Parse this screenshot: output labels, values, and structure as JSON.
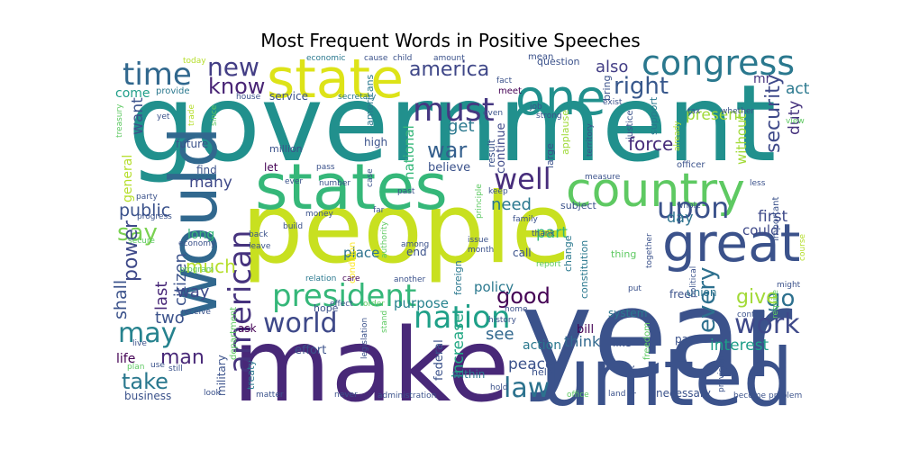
{
  "chart_data": {
    "type": "wordcloud",
    "title": "Most Frequent Words in Positive Speeches",
    "background": "#ffffff",
    "colormap": "viridis",
    "words": [
      {
        "text": "government",
        "weight": 100,
        "color": "#21908d"
      },
      {
        "text": "people",
        "weight": 92,
        "color": "#c8e020"
      },
      {
        "text": "year",
        "weight": 90,
        "color": "#3b528b"
      },
      {
        "text": "make",
        "weight": 86,
        "color": "#482878"
      },
      {
        "text": "would",
        "weight": 60,
        "color": "#31688e"
      },
      {
        "text": "united",
        "weight": 60,
        "color": "#3b528b"
      },
      {
        "text": "states",
        "weight": 55,
        "color": "#35b779"
      },
      {
        "text": "state",
        "weight": 48,
        "color": "#dde318"
      },
      {
        "text": "one",
        "weight": 45,
        "color": "#21908d"
      },
      {
        "text": "country",
        "weight": 42,
        "color": "#5ec962"
      },
      {
        "text": "great",
        "weight": 40,
        "color": "#3b528b"
      },
      {
        "text": "congress",
        "weight": 33,
        "color": "#2a788e"
      },
      {
        "text": "american",
        "weight": 30,
        "color": "#46337e"
      },
      {
        "text": "president",
        "weight": 30,
        "color": "#35b779"
      },
      {
        "text": "nation",
        "weight": 30,
        "color": "#1fa088"
      },
      {
        "text": "time",
        "weight": 28,
        "color": "#31688e"
      },
      {
        "text": "upon",
        "weight": 28,
        "color": "#3b528b"
      },
      {
        "text": "well",
        "weight": 28,
        "color": "#472d7b"
      },
      {
        "text": "must",
        "weight": 27,
        "color": "#453781"
      },
      {
        "text": "world",
        "weight": 27,
        "color": "#3e4989"
      },
      {
        "text": "law",
        "weight": 27,
        "color": "#2c728e"
      },
      {
        "text": "may",
        "weight": 26,
        "color": "#26828e"
      },
      {
        "text": "work",
        "weight": 26,
        "color": "#3e4989"
      },
      {
        "text": "new",
        "weight": 25,
        "color": "#433e85"
      },
      {
        "text": "right",
        "weight": 22,
        "color": "#38588c"
      },
      {
        "text": "america",
        "weight": 20,
        "color": "#3f4788"
      },
      {
        "text": "say",
        "weight": 22,
        "color": "#7ad151"
      },
      {
        "text": "good",
        "weight": 22,
        "color": "#440154"
      },
      {
        "text": "know",
        "weight": 20,
        "color": "#482475"
      },
      {
        "text": "power",
        "weight": 20,
        "color": "#3e4989"
      },
      {
        "text": "take",
        "weight": 20,
        "color": "#2a788e"
      },
      {
        "text": "man",
        "weight": 20,
        "color": "#482878"
      },
      {
        "text": "every",
        "weight": 20,
        "color": "#2d708e"
      },
      {
        "text": "war",
        "weight": 18,
        "color": "#345f8d"
      },
      {
        "text": "go",
        "weight": 20,
        "color": "#2d708e"
      },
      {
        "text": "give",
        "weight": 18,
        "color": "#a2da37"
      },
      {
        "text": "much",
        "weight": 16,
        "color": "#b5de2b"
      },
      {
        "text": "security",
        "weight": 16,
        "color": "#3e4989"
      },
      {
        "text": "force",
        "weight": 15,
        "color": "#472c7a"
      },
      {
        "text": "present",
        "weight": 14,
        "color": "#a0da39"
      },
      {
        "text": "peace",
        "weight": 14,
        "color": "#3b528b"
      },
      {
        "text": "see",
        "weight": 14,
        "color": "#31688e"
      },
      {
        "text": "need",
        "weight": 14,
        "color": "#2a788e"
      },
      {
        "text": "public",
        "weight": 14,
        "color": "#3b528b"
      },
      {
        "text": "shall",
        "weight": 13,
        "color": "#3b528b"
      },
      {
        "text": "last",
        "weight": 13,
        "color": "#482878"
      },
      {
        "text": "citizen",
        "weight": 13,
        "color": "#3b528b"
      },
      {
        "text": "way",
        "weight": 13,
        "color": "#3e4989"
      },
      {
        "text": "two",
        "weight": 13,
        "color": "#3b528b"
      },
      {
        "text": "also",
        "weight": 13,
        "color": "#433e85"
      },
      {
        "text": "get",
        "weight": 13,
        "color": "#2a788e"
      },
      {
        "text": "increase",
        "weight": 13,
        "color": "#22a884"
      },
      {
        "text": "interest",
        "weight": 13,
        "color": "#1f9e89"
      },
      {
        "text": "act",
        "weight": 12,
        "color": "#2a788e"
      },
      {
        "text": "duty",
        "weight": 12,
        "color": "#46337e"
      },
      {
        "text": "first",
        "weight": 12,
        "color": "#3e4989"
      },
      {
        "text": "day",
        "weight": 12,
        "color": "#2c728e"
      },
      {
        "text": "part",
        "weight": 12,
        "color": "#35b779"
      },
      {
        "text": "want",
        "weight": 12,
        "color": "#3b528b"
      },
      {
        "text": "many",
        "weight": 12,
        "color": "#3e4989"
      },
      {
        "text": "come",
        "weight": 11,
        "color": "#1f9e89"
      },
      {
        "text": "think",
        "weight": 11,
        "color": "#31688e"
      },
      {
        "text": "policy",
        "weight": 11,
        "color": "#2a788e"
      },
      {
        "text": "purpose",
        "weight": 11,
        "color": "#26828e"
      },
      {
        "text": "national",
        "weight": 11,
        "color": "#35b779"
      },
      {
        "text": "without",
        "weight": 11,
        "color": "#a2da37"
      },
      {
        "text": "action",
        "weight": 10,
        "color": "#2a788e"
      },
      {
        "text": "could",
        "weight": 10,
        "color": "#3e4989"
      },
      {
        "text": "life",
        "weight": 10,
        "color": "#440154"
      },
      {
        "text": "mr",
        "weight": 10,
        "color": "#46337e"
      },
      {
        "text": "general",
        "weight": 10,
        "color": "#b5de2b"
      },
      {
        "text": "long",
        "weight": 10,
        "color": "#35b779"
      },
      {
        "text": "place",
        "weight": 10,
        "color": "#2c728e"
      },
      {
        "text": "believe",
        "weight": 10,
        "color": "#3b528b"
      },
      {
        "text": "continue",
        "weight": 10,
        "color": "#3e4989"
      },
      {
        "text": "business",
        "weight": 9,
        "color": "#3b528b"
      },
      {
        "text": "necessary",
        "weight": 9,
        "color": "#3b528b"
      },
      {
        "text": "free",
        "weight": 9,
        "color": "#3b528b"
      },
      {
        "text": "federal",
        "weight": 9,
        "color": "#3b528b"
      },
      {
        "text": "bill",
        "weight": 9,
        "color": "#440154"
      },
      {
        "text": "system",
        "weight": 9,
        "color": "#2a788e"
      },
      {
        "text": "union",
        "weight": 9,
        "color": "#2c728e"
      },
      {
        "text": "military",
        "weight": 9,
        "color": "#3b528b"
      },
      {
        "text": "effort",
        "weight": 9,
        "color": "#3b528b"
      },
      {
        "text": "service",
        "weight": 9,
        "color": "#3b528b"
      },
      {
        "text": "high",
        "weight": 9,
        "color": "#3b528b"
      },
      {
        "text": "let",
        "weight": 9,
        "color": "#440154"
      },
      {
        "text": "future",
        "weight": 9,
        "color": "#3b528b"
      },
      {
        "text": "find",
        "weight": 9,
        "color": "#3b528b"
      },
      {
        "text": "ask",
        "weight": 9,
        "color": "#440154"
      },
      {
        "text": "call",
        "weight": 9,
        "color": "#3b528b"
      },
      {
        "text": "end",
        "weight": 9,
        "color": "#3b528b"
      },
      {
        "text": "like",
        "weight": 9,
        "color": "#3b528b"
      },
      {
        "text": "pay",
        "weight": 9,
        "color": "#3b528b"
      },
      {
        "text": "help",
        "weight": 9,
        "color": "#3b528b"
      },
      {
        "text": "question",
        "weight": 8,
        "color": "#3b528b"
      },
      {
        "text": "large",
        "weight": 8,
        "color": "#3b528b"
      },
      {
        "text": "bring",
        "weight": 8,
        "color": "#3b528b"
      },
      {
        "text": "within",
        "weight": 8,
        "color": "#2a788e"
      },
      {
        "text": "hope",
        "weight": 8,
        "color": "#3b528b"
      },
      {
        "text": "americans",
        "weight": 8,
        "color": "#2a788e"
      },
      {
        "text": "million",
        "weight": 8,
        "color": "#3b528b"
      },
      {
        "text": "support",
        "weight": 8,
        "color": "#2a788e"
      },
      {
        "text": "treaty",
        "weight": 8,
        "color": "#2a788e"
      },
      {
        "text": "constitution",
        "weight": 8,
        "color": "#2a788e"
      },
      {
        "text": "foreign",
        "weight": 8,
        "color": "#2a788e"
      },
      {
        "text": "important",
        "weight": 7,
        "color": "#3b528b"
      },
      {
        "text": "subject",
        "weight": 7,
        "color": "#3b528b"
      },
      {
        "text": "thing",
        "weight": 7,
        "color": "#5ec962"
      },
      {
        "text": "applause",
        "weight": 7,
        "color": "#a0da39"
      },
      {
        "text": "result",
        "weight": 7,
        "color": "#3b528b"
      },
      {
        "text": "change",
        "weight": 7,
        "color": "#2a788e"
      },
      {
        "text": "provide",
        "weight": 7,
        "color": "#2a788e"
      },
      {
        "text": "meet",
        "weight": 7,
        "color": "#440154"
      },
      {
        "text": "mean",
        "weight": 7,
        "color": "#3b528b"
      },
      {
        "text": "department",
        "weight": 7,
        "color": "#5ec962"
      },
      {
        "text": "condition",
        "weight": 7,
        "color": "#fde725"
      },
      {
        "text": "justice",
        "weight": 7,
        "color": "#3b528b"
      },
      {
        "text": "freedom",
        "weight": 7,
        "color": "#5ec962"
      },
      {
        "text": "officer",
        "weight": 7,
        "color": "#3b528b"
      },
      {
        "text": "home",
        "weight": 7,
        "color": "#3b528b"
      },
      {
        "text": "back",
        "weight": 7,
        "color": "#3b528b"
      },
      {
        "text": "leave",
        "weight": 7,
        "color": "#3b528b"
      },
      {
        "text": "relation",
        "weight": 7,
        "color": "#2a788e"
      },
      {
        "text": "care",
        "weight": 7,
        "color": "#440154"
      },
      {
        "text": "among",
        "weight": 7,
        "color": "#3b528b"
      },
      {
        "text": "issue",
        "weight": 7,
        "color": "#3b528b"
      },
      {
        "text": "month",
        "weight": 7,
        "color": "#3b528b"
      },
      {
        "text": "secretary",
        "weight": 7,
        "color": "#2a788e"
      },
      {
        "text": "house",
        "weight": 7,
        "color": "#3b528b"
      },
      {
        "text": "political",
        "weight": 7,
        "color": "#3b528b"
      },
      {
        "text": "provision",
        "weight": 7,
        "color": "#3b528b"
      },
      {
        "text": "amount",
        "weight": 6,
        "color": "#3b528b"
      },
      {
        "text": "child",
        "weight": 6,
        "color": "#3b528b"
      },
      {
        "text": "economic",
        "weight": 6,
        "color": "#2a788e"
      },
      {
        "text": "cause",
        "weight": 6,
        "color": "#3b528b"
      },
      {
        "text": "today",
        "weight": 6,
        "color": "#b5de2b"
      },
      {
        "text": "treasury",
        "weight": 6,
        "color": "#5ec962"
      },
      {
        "text": "trade",
        "weight": 6,
        "color": "#b5de2b"
      },
      {
        "text": "since",
        "weight": 6,
        "color": "#5ec962"
      },
      {
        "text": "yet",
        "weight": 6,
        "color": "#3b528b"
      },
      {
        "text": "fact",
        "weight": 6,
        "color": "#3b528b"
      },
      {
        "text": "exist",
        "weight": 6,
        "color": "#3b528b"
      },
      {
        "text": "job",
        "weight": 6,
        "color": "#3b528b"
      },
      {
        "text": "tax",
        "weight": 6,
        "color": "#3b528b"
      },
      {
        "text": "view",
        "weight": 6,
        "color": "#5ec962"
      },
      {
        "text": "already",
        "weight": 6,
        "color": "#b5de2b"
      },
      {
        "text": "territory",
        "weight": 6,
        "color": "#3b528b"
      },
      {
        "text": "even",
        "weight": 6,
        "color": "#3b528b"
      },
      {
        "text": "strong",
        "weight": 6,
        "color": "#3b528b"
      },
      {
        "text": "measure",
        "weight": 6,
        "color": "#3b528b"
      },
      {
        "text": "party",
        "weight": 6,
        "color": "#3b528b"
      },
      {
        "text": "pass",
        "weight": 6,
        "color": "#3b528b"
      },
      {
        "text": "case",
        "weight": 6,
        "color": "#3b528b"
      },
      {
        "text": "ever",
        "weight": 6,
        "color": "#3b528b"
      },
      {
        "text": "number",
        "weight": 6,
        "color": "#3b528b"
      },
      {
        "text": "past",
        "weight": 6,
        "color": "#3b528b"
      },
      {
        "text": "keep",
        "weight": 6,
        "color": "#3b528b"
      },
      {
        "text": "principle",
        "weight": 6,
        "color": "#5ec962"
      },
      {
        "text": "whole",
        "weight": 6,
        "color": "#3b528b"
      },
      {
        "text": "less",
        "weight": 6,
        "color": "#3b528b"
      },
      {
        "text": "progress",
        "weight": 6,
        "color": "#3b528b"
      },
      {
        "text": "money",
        "weight": 6,
        "color": "#3b528b"
      },
      {
        "text": "far",
        "weight": 6,
        "color": "#3b528b"
      },
      {
        "text": "family",
        "weight": 6,
        "color": "#3b528b"
      },
      {
        "text": "authority",
        "weight": 6,
        "color": "#5ec962"
      },
      {
        "text": "thank",
        "weight": 6,
        "color": "#3b528b"
      },
      {
        "text": "report",
        "weight": 6,
        "color": "#5ec962"
      },
      {
        "text": "secure",
        "weight": 6,
        "color": "#5ec962"
      },
      {
        "text": "economy",
        "weight": 6,
        "color": "#3b528b"
      },
      {
        "text": "together",
        "weight": 6,
        "color": "#3b528b"
      },
      {
        "text": "course",
        "weight": 6,
        "color": "#b5de2b"
      },
      {
        "text": "might",
        "weight": 6,
        "color": "#3b528b"
      },
      {
        "text": "program",
        "weight": 6,
        "color": "#5ec962"
      },
      {
        "text": "another",
        "weight": 6,
        "color": "#3b528b"
      },
      {
        "text": "put",
        "weight": 6,
        "color": "#3b528b"
      },
      {
        "text": "control",
        "weight": 6,
        "color": "#3b528b"
      },
      {
        "text": "receive",
        "weight": 6,
        "color": "#3b528b"
      },
      {
        "text": "effect",
        "weight": 6,
        "color": "#3b528b"
      },
      {
        "text": "order",
        "weight": 6,
        "color": "#5ec962"
      },
      {
        "text": "history",
        "weight": 6,
        "color": "#3b528b"
      },
      {
        "text": "require",
        "weight": 6,
        "color": "#5ec962"
      },
      {
        "text": "live",
        "weight": 6,
        "color": "#3b528b"
      },
      {
        "text": "plan",
        "weight": 6,
        "color": "#5ec962"
      },
      {
        "text": "use",
        "weight": 6,
        "color": "#3b528b"
      },
      {
        "text": "still",
        "weight": 6,
        "color": "#3b528b"
      },
      {
        "text": "stand",
        "weight": 6,
        "color": "#5ec962"
      },
      {
        "text": "legislation",
        "weight": 6,
        "color": "#3b528b"
      },
      {
        "text": "look",
        "weight": 6,
        "color": "#3b528b"
      },
      {
        "text": "matter",
        "weight": 6,
        "color": "#3b528b"
      },
      {
        "text": "administration",
        "weight": 6,
        "color": "#3b528b"
      },
      {
        "text": "never",
        "weight": 6,
        "color": "#3b528b"
      },
      {
        "text": "hold",
        "weight": 6,
        "color": "#3b528b"
      },
      {
        "text": "office",
        "weight": 6,
        "color": "#5ec962"
      },
      {
        "text": "land",
        "weight": 6,
        "color": "#3b528b"
      },
      {
        "text": "protect",
        "weight": 6,
        "color": "#3b528b"
      },
      {
        "text": "become",
        "weight": 6,
        "color": "#3b528b"
      },
      {
        "text": "problem",
        "weight": 6,
        "color": "#3b528b"
      },
      {
        "text": "whether",
        "weight": 6,
        "color": "#3b528b"
      },
      {
        "text": "build",
        "weight": 6,
        "color": "#3b528b"
      }
    ]
  }
}
